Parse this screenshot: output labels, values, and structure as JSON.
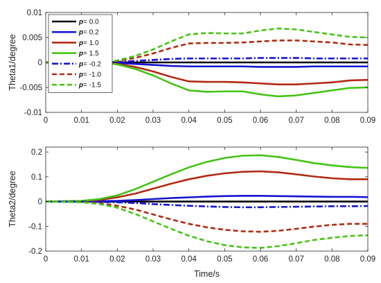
{
  "chart_data": [
    {
      "type": "line",
      "title": "",
      "xlabel": "",
      "ylabel": "Theta1/degree",
      "xlim": [
        0,
        0.09
      ],
      "ylim": [
        -0.01,
        0.01
      ],
      "xticks": [
        0,
        0.01,
        0.02,
        0.03,
        0.04,
        0.05,
        0.06,
        0.07,
        0.08,
        0.09
      ],
      "xtick_labels": [
        "0",
        "0.01",
        "0.02",
        "0.03",
        "0.04",
        "0.05",
        "0.06",
        "0.07",
        "0.08",
        "0.09"
      ],
      "yticks": [
        -0.01,
        -0.005,
        0,
        0.005,
        0.01
      ],
      "ytick_labels": [
        "-0.01",
        "-0.005",
        "0",
        "0.005",
        "0.01"
      ],
      "grid": false,
      "legend": {
        "position": "top-left",
        "var": "p",
        "entries": [
          "= 0.0",
          "= 0.2",
          "= 1.0",
          "= 1.5",
          "= -0.2",
          "= -1.0",
          "= -1.5"
        ]
      },
      "series": [
        {
          "name": "= 0.0",
          "color": "#000000",
          "dash": "solid",
          "x": [
            0,
            0.01,
            0.02,
            0.03,
            0.04,
            0.05,
            0.06,
            0.07,
            0.08,
            0.09
          ],
          "y": [
            0,
            0,
            0,
            0,
            0,
            0,
            0,
            0,
            0,
            0
          ]
        },
        {
          "name": "= 0.2",
          "color": "#1414d2",
          "dash": "solid",
          "x": [
            0,
            0.01,
            0.02,
            0.025,
            0.03,
            0.035,
            0.04,
            0.045,
            0.05,
            0.055,
            0.06,
            0.065,
            0.07,
            0.075,
            0.08,
            0.085,
            0.09
          ],
          "y": [
            0,
            0,
            -0.0001,
            -0.0003,
            -0.0005,
            -0.0007,
            -0.0008,
            -0.0008,
            -0.0008,
            -0.0008,
            -0.0009,
            -0.0009,
            -0.0009,
            -0.0008,
            -0.0008,
            -0.0008,
            -0.0008
          ]
        },
        {
          "name": "= 1.0",
          "color": "#b02a12",
          "dash": "solid",
          "x": [
            0,
            0.01,
            0.015,
            0.02,
            0.025,
            0.03,
            0.035,
            0.04,
            0.045,
            0.05,
            0.055,
            0.06,
            0.065,
            0.07,
            0.075,
            0.08,
            0.085,
            0.09
          ],
          "y": [
            0,
            0,
            0,
            -0.0003,
            -0.0009,
            -0.0018,
            -0.0029,
            -0.0038,
            -0.0039,
            -0.0039,
            -0.004,
            -0.0042,
            -0.0044,
            -0.0044,
            -0.0042,
            -0.004,
            -0.0036,
            -0.0035
          ]
        },
        {
          "name": "= 1.5",
          "color": "#44c414",
          "dash": "solid",
          "x": [
            0,
            0.01,
            0.015,
            0.02,
            0.025,
            0.03,
            0.035,
            0.04,
            0.045,
            0.05,
            0.055,
            0.06,
            0.065,
            0.07,
            0.075,
            0.08,
            0.085,
            0.09
          ],
          "y": [
            0,
            0,
            0,
            -0.0004,
            -0.0013,
            -0.0026,
            -0.0042,
            -0.0056,
            -0.0059,
            -0.0058,
            -0.0058,
            -0.0064,
            -0.0068,
            -0.0066,
            -0.0061,
            -0.0056,
            -0.0051,
            -0.005
          ]
        },
        {
          "name": "= -0.2",
          "color": "#1414d2",
          "dash": "dashdot",
          "x": [
            0,
            0.01,
            0.02,
            0.025,
            0.03,
            0.035,
            0.04,
            0.045,
            0.05,
            0.055,
            0.06,
            0.065,
            0.07,
            0.075,
            0.08,
            0.085,
            0.09
          ],
          "y": [
            0,
            0,
            0.0001,
            0.0003,
            0.0005,
            0.0007,
            0.0008,
            0.0008,
            0.0008,
            0.0008,
            0.0009,
            0.0009,
            0.0009,
            0.0008,
            0.0008,
            0.0008,
            0.0008
          ]
        },
        {
          "name": "= -1.0",
          "color": "#b02a12",
          "dash": "dashed",
          "x": [
            0,
            0.01,
            0.015,
            0.02,
            0.025,
            0.03,
            0.035,
            0.04,
            0.045,
            0.05,
            0.055,
            0.06,
            0.065,
            0.07,
            0.075,
            0.08,
            0.085,
            0.09
          ],
          "y": [
            0,
            0,
            0,
            0.0003,
            0.0009,
            0.0018,
            0.0029,
            0.0038,
            0.0039,
            0.0039,
            0.004,
            0.0042,
            0.0044,
            0.0044,
            0.0042,
            0.004,
            0.0036,
            0.0035
          ]
        },
        {
          "name": "= -1.5",
          "color": "#44c414",
          "dash": "dashed",
          "x": [
            0,
            0.01,
            0.015,
            0.02,
            0.025,
            0.03,
            0.035,
            0.04,
            0.045,
            0.05,
            0.055,
            0.06,
            0.065,
            0.07,
            0.075,
            0.08,
            0.085,
            0.09
          ],
          "y": [
            0,
            0,
            0,
            0.0004,
            0.0013,
            0.0026,
            0.0042,
            0.0056,
            0.0059,
            0.0058,
            0.0058,
            0.0064,
            0.0068,
            0.0066,
            0.0061,
            0.0056,
            0.0051,
            0.005
          ]
        }
      ]
    },
    {
      "type": "line",
      "title": "",
      "xlabel": "Time/s",
      "ylabel": "Theta2/degree",
      "xlim": [
        0,
        0.09
      ],
      "ylim": [
        -0.2,
        0.22
      ],
      "xticks": [
        0,
        0.01,
        0.02,
        0.03,
        0.04,
        0.05,
        0.06,
        0.07,
        0.08,
        0.09
      ],
      "xtick_labels": [
        "0",
        "0.01",
        "0.02",
        "0.03",
        "0.04",
        "0.05",
        "0.06",
        "0.07",
        "0.08",
        "0.09"
      ],
      "yticks": [
        -0.2,
        -0.1,
        0,
        0.1,
        0.2
      ],
      "ytick_labels": [
        "-0.2",
        "-0.1",
        "0",
        "0.1",
        "0.2"
      ],
      "grid": false,
      "series": [
        {
          "name": "= 0.0",
          "color": "#000000",
          "dash": "solid",
          "x": [
            0,
            0.01,
            0.02,
            0.03,
            0.04,
            0.05,
            0.06,
            0.07,
            0.08,
            0.09
          ],
          "y": [
            0,
            0,
            0,
            0,
            0,
            0,
            0,
            0,
            0,
            0
          ]
        },
        {
          "name": "= 0.2",
          "color": "#1414d2",
          "dash": "solid",
          "x": [
            0,
            0.01,
            0.02,
            0.025,
            0.03,
            0.035,
            0.04,
            0.045,
            0.05,
            0.055,
            0.06,
            0.065,
            0.07,
            0.075,
            0.08,
            0.085,
            0.09
          ],
          "y": [
            0,
            0.0005,
            0.003,
            0.006,
            0.01,
            0.014,
            0.017,
            0.02,
            0.022,
            0.023,
            0.023,
            0.022,
            0.021,
            0.02,
            0.019,
            0.019,
            0.018
          ]
        },
        {
          "name": "= 1.0",
          "color": "#b02a12",
          "dash": "solid",
          "x": [
            0,
            0.01,
            0.015,
            0.02,
            0.025,
            0.03,
            0.035,
            0.04,
            0.045,
            0.05,
            0.055,
            0.06,
            0.065,
            0.07,
            0.075,
            0.08,
            0.085,
            0.09
          ],
          "y": [
            0,
            0.002,
            0.007,
            0.017,
            0.032,
            0.052,
            0.072,
            0.09,
            0.104,
            0.114,
            0.12,
            0.122,
            0.118,
            0.11,
            0.101,
            0.094,
            0.09,
            0.09
          ]
        },
        {
          "name": "= 1.5",
          "color": "#44c414",
          "dash": "solid",
          "x": [
            0,
            0.01,
            0.015,
            0.02,
            0.025,
            0.03,
            0.035,
            0.04,
            0.045,
            0.05,
            0.055,
            0.06,
            0.065,
            0.07,
            0.075,
            0.08,
            0.085,
            0.09
          ],
          "y": [
            0,
            0.003,
            0.01,
            0.025,
            0.05,
            0.08,
            0.11,
            0.138,
            0.16,
            0.176,
            0.185,
            0.187,
            0.18,
            0.168,
            0.155,
            0.146,
            0.139,
            0.136
          ]
        },
        {
          "name": "= -0.2",
          "color": "#1414d2",
          "dash": "dashdot",
          "x": [
            0,
            0.01,
            0.02,
            0.025,
            0.03,
            0.035,
            0.04,
            0.045,
            0.05,
            0.055,
            0.06,
            0.065,
            0.07,
            0.075,
            0.08,
            0.085,
            0.09
          ],
          "y": [
            0,
            -0.0005,
            -0.003,
            -0.006,
            -0.01,
            -0.014,
            -0.017,
            -0.02,
            -0.022,
            -0.023,
            -0.023,
            -0.022,
            -0.021,
            -0.02,
            -0.019,
            -0.019,
            -0.018
          ]
        },
        {
          "name": "= -1.0",
          "color": "#b02a12",
          "dash": "dashed",
          "x": [
            0,
            0.01,
            0.015,
            0.02,
            0.025,
            0.03,
            0.035,
            0.04,
            0.045,
            0.05,
            0.055,
            0.06,
            0.065,
            0.07,
            0.075,
            0.08,
            0.085,
            0.09
          ],
          "y": [
            0,
            -0.002,
            -0.007,
            -0.017,
            -0.032,
            -0.052,
            -0.072,
            -0.09,
            -0.104,
            -0.114,
            -0.12,
            -0.122,
            -0.118,
            -0.11,
            -0.101,
            -0.094,
            -0.09,
            -0.09
          ]
        },
        {
          "name": "= -1.5",
          "color": "#44c414",
          "dash": "dashed",
          "x": [
            0,
            0.01,
            0.015,
            0.02,
            0.025,
            0.03,
            0.035,
            0.04,
            0.045,
            0.05,
            0.055,
            0.06,
            0.065,
            0.07,
            0.075,
            0.08,
            0.085,
            0.09
          ],
          "y": [
            0,
            -0.003,
            -0.01,
            -0.025,
            -0.05,
            -0.08,
            -0.11,
            -0.138,
            -0.16,
            -0.176,
            -0.185,
            -0.187,
            -0.18,
            -0.168,
            -0.155,
            -0.146,
            -0.139,
            -0.136
          ]
        }
      ]
    }
  ]
}
